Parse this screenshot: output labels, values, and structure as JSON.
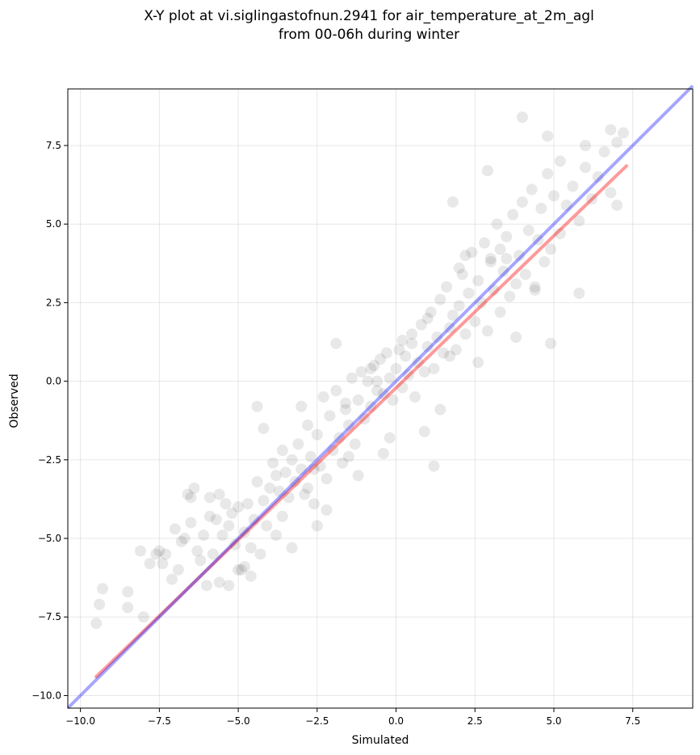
{
  "chart_data": {
    "type": "scatter",
    "title_lines": [
      "X-Y plot at vi.siglingastofnun.2941 for air_temperature_at_2m_agl",
      "from 00-06h during winter"
    ],
    "xlabel": "Simulated",
    "ylabel": "Observed",
    "xlim": [
      -10.4,
      9.4
    ],
    "ylim": [
      -10.4,
      9.3
    ],
    "xticks": [
      -10.0,
      -7.5,
      -5.0,
      -2.5,
      0.0,
      2.5,
      5.0,
      7.5
    ],
    "yticks": [
      -10.0,
      -7.5,
      -5.0,
      -2.5,
      0.0,
      2.5,
      5.0,
      7.5
    ],
    "xtick_labels": [
      "−10.0",
      "−7.5",
      "−5.0",
      "−2.5",
      "0.0",
      "2.5",
      "5.0",
      "7.5"
    ],
    "ytick_labels": [
      "−10.0",
      "−7.5",
      "−5.0",
      "−2.5",
      "0.0",
      "2.5",
      "5.0",
      "7.5"
    ],
    "grid": true,
    "colors": {
      "points": "#000000",
      "fit_line": "#ff0000",
      "identity_line": "#0000ff"
    },
    "fit_line": {
      "x": [
        -9.5,
        7.3
      ],
      "y": [
        -9.4,
        6.85
      ]
    },
    "identity_line": {
      "x": [
        -10.4,
        9.4
      ],
      "y": [
        -10.4,
        9.4
      ]
    },
    "points": {
      "x": [
        -9.5,
        -9.4,
        -9.3,
        -8.5,
        -8.5,
        -8.1,
        -8.0,
        -7.8,
        -7.6,
        -7.5,
        -7.3,
        -7.1,
        -7.0,
        -6.9,
        -6.7,
        -6.6,
        -6.5,
        -6.4,
        -6.3,
        -6.2,
        -6.1,
        -6.0,
        -5.9,
        -5.8,
        -5.7,
        -5.6,
        -5.5,
        -5.4,
        -5.3,
        -5.2,
        -5.1,
        -5.0,
        -4.9,
        -4.8,
        -4.7,
        -4.6,
        -4.5,
        -4.4,
        -4.3,
        -4.2,
        -4.1,
        -4.0,
        -3.9,
        -3.8,
        -3.7,
        -3.6,
        -3.5,
        -3.4,
        -3.3,
        -3.2,
        -3.1,
        -3.0,
        -2.9,
        -2.8,
        -2.7,
        -2.6,
        -2.5,
        -2.4,
        -2.3,
        -2.2,
        -2.1,
        -2.0,
        -1.9,
        -1.8,
        -1.7,
        -1.6,
        -1.5,
        -1.4,
        -1.3,
        -1.2,
        -1.1,
        -1.0,
        -0.9,
        -0.8,
        -0.7,
        -0.6,
        -0.5,
        -0.4,
        -0.3,
        -0.2,
        -0.1,
        0.0,
        0.1,
        0.2,
        0.3,
        0.4,
        0.5,
        0.6,
        0.7,
        0.8,
        0.9,
        1.0,
        1.1,
        1.2,
        1.3,
        1.4,
        1.5,
        1.6,
        1.7,
        1.8,
        1.9,
        2.0,
        2.1,
        2.2,
        2.3,
        2.4,
        2.5,
        2.6,
        2.7,
        2.8,
        2.9,
        3.0,
        3.1,
        3.2,
        3.3,
        3.4,
        3.5,
        3.6,
        3.7,
        3.8,
        3.9,
        4.0,
        4.1,
        4.2,
        4.3,
        4.4,
        4.5,
        4.6,
        4.7,
        4.8,
        4.9,
        5.0,
        5.2,
        5.4,
        5.6,
        5.8,
        6.0,
        6.2,
        6.4,
        6.6,
        6.8,
        7.0,
        7.2,
        -1.9,
        -4.4,
        -2.8,
        1.2,
        3.5,
        4.0,
        4.8,
        5.2,
        6.0,
        6.8,
        7.0,
        5.8,
        4.9,
        3.8,
        2.0,
        1.7,
        0.9,
        -0.4,
        -1.2,
        -2.2,
        -3.6,
        -5.0,
        -5.6,
        -6.5,
        -4.2,
        -3.0,
        -0.8,
        0.5,
        1.8,
        2.9,
        3.3,
        4.4,
        2.6,
        1.4,
        -0.2,
        -1.5,
        -2.5,
        -3.3,
        -4.8,
        -5.3,
        2.2,
        3.0,
        1.0,
        0.2,
        -0.6,
        -1.6,
        -2.6,
        -3.8,
        -4.6,
        -5.9,
        -7.4,
        -6.8
      ],
      "y": [
        -7.7,
        -7.1,
        -6.6,
        -7.2,
        -6.7,
        -5.4,
        -7.5,
        -5.8,
        -5.5,
        -5.4,
        -5.5,
        -6.3,
        -4.7,
        -6.0,
        -5.0,
        -3.6,
        -4.5,
        -3.4,
        -5.4,
        -5.7,
        -4.9,
        -6.5,
        -3.7,
        -5.5,
        -4.4,
        -6.4,
        -4.9,
        -3.9,
        -4.6,
        -4.2,
        -5.2,
        -4.0,
        -6.0,
        -4.8,
        -3.9,
        -5.3,
        -4.4,
        -3.2,
        -5.5,
        -3.8,
        -4.6,
        -3.4,
        -2.6,
        -4.9,
        -3.5,
        -4.3,
        -2.9,
        -3.7,
        -2.5,
        -3.2,
        -2.0,
        -2.8,
        -3.6,
        -1.4,
        -2.4,
        -3.9,
        -1.7,
        -2.7,
        -0.5,
        -3.1,
        -1.1,
        -2.2,
        -0.3,
        -1.8,
        -2.6,
        -0.7,
        -1.4,
        0.1,
        -2.0,
        -0.6,
        0.3,
        -1.2,
        0.0,
        -0.8,
        0.5,
        -0.3,
        0.7,
        -0.4,
        0.9,
        0.1,
        -0.6,
        0.4,
        1.0,
        -0.2,
        0.8,
        0.2,
        1.5,
        -0.5,
        0.6,
        1.8,
        0.3,
        1.1,
        2.2,
        0.4,
        1.4,
        2.6,
        0.9,
        3.0,
        1.7,
        2.1,
        1.0,
        2.4,
        3.4,
        1.5,
        2.8,
        4.1,
        1.9,
        3.2,
        2.5,
        4.4,
        1.6,
        3.8,
        2.9,
        5.0,
        2.2,
        3.5,
        4.6,
        2.7,
        5.3,
        3.1,
        4.0,
        5.7,
        3.4,
        4.8,
        6.1,
        2.9,
        4.5,
        5.5,
        3.8,
        6.6,
        4.2,
        5.9,
        4.7,
        5.6,
        6.2,
        5.1,
        6.8,
        5.8,
        6.5,
        7.3,
        6.0,
        7.6,
        7.9,
        1.2,
        -0.8,
        -3.4,
        -2.7,
        3.9,
        8.4,
        7.8,
        7.0,
        7.5,
        8.0,
        5.6,
        2.8,
        1.2,
        1.4,
        3.6,
        0.8,
        -1.6,
        -2.3,
        -3.0,
        -4.1,
        -2.2,
        -6.0,
        -3.6,
        -3.7,
        -1.5,
        -0.8,
        0.4,
        1.2,
        5.7,
        6.7,
        4.2,
        3.0,
        0.6,
        -0.9,
        -1.8,
        -2.4,
        -4.6,
        -5.3,
        -5.9,
        -6.5,
        4.0,
        3.9,
        2.0,
        1.3,
        0.0,
        -0.9,
        -2.8,
        -3.0,
        -6.2,
        -4.3,
        -5.8,
        -5.1
      ]
    }
  }
}
